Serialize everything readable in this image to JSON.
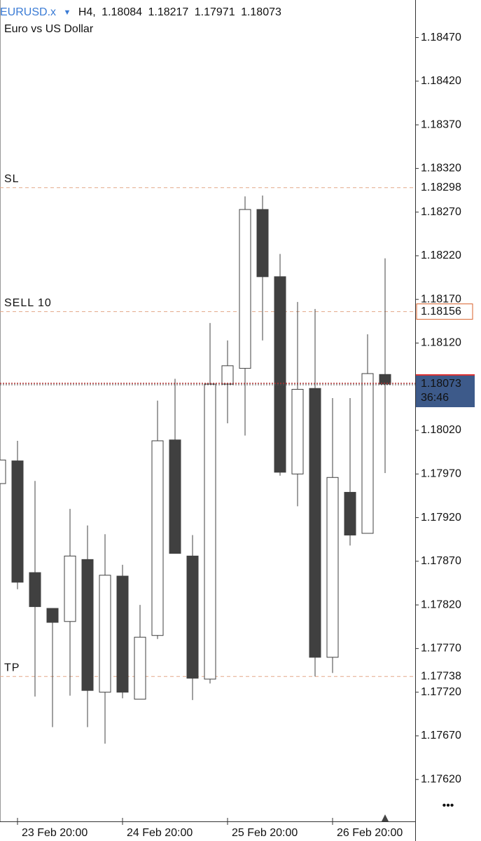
{
  "chart_data": {
    "type": "candlestick",
    "symbol": "EURUSD.x",
    "timeframe": "H4,",
    "subtitle": "Euro vs US Dollar",
    "categories": [
      null,
      "23 Feb 20:00",
      null,
      null,
      null,
      null,
      null,
      "24 Feb 20:00",
      null,
      null,
      null,
      null,
      null,
      "25 Feb 20:00",
      null,
      null,
      null,
      null,
      null,
      "26 Feb 20:00",
      null,
      null,
      null
    ],
    "open": [
      1.17959,
      1.17985,
      1.17857,
      1.17816,
      1.17801,
      1.17872,
      1.1772,
      1.17853,
      1.17712,
      1.17785,
      1.18009,
      1.17876,
      1.17735,
      1.18073,
      1.18091,
      1.18273,
      1.18196,
      1.1797,
      1.18068,
      1.1776,
      1.17949,
      1.17902,
      1.18084
    ],
    "high": [
      1.17986,
      1.18008,
      1.17962,
      1.17816,
      1.1793,
      1.17911,
      1.17901,
      1.17866,
      1.1782,
      1.18054,
      1.18079,
      1.179,
      1.18143,
      1.18123,
      1.18288,
      1.18289,
      1.18222,
      1.18167,
      1.18159,
      1.18057,
      1.18057,
      1.1813,
      1.18217
    ],
    "low": [
      1.17959,
      1.17838,
      1.17715,
      1.1768,
      1.17716,
      1.1768,
      1.17661,
      1.17713,
      1.17712,
      1.17781,
      1.17879,
      1.17711,
      1.1773,
      1.18028,
      1.18014,
      1.18123,
      1.17968,
      1.17933,
      1.17738,
      1.17742,
      1.17888,
      1.17902,
      1.17971
    ],
    "close": [
      1.17986,
      1.17846,
      1.17818,
      1.178,
      1.17876,
      1.17722,
      1.17854,
      1.1772,
      1.17783,
      1.18008,
      1.17879,
      1.17736,
      1.18073,
      1.18094,
      1.18273,
      1.18196,
      1.17972,
      1.18067,
      1.1776,
      1.17966,
      1.179,
      1.18085,
      1.18073
    ],
    "up_color": "#ffffff",
    "down_color": "#404040",
    "ylim": [
      1.17572,
      1.18513
    ],
    "yticks": [
      {
        "value": 1.1847,
        "label": "1.18470"
      },
      {
        "value": 1.1842,
        "label": "1.18420"
      },
      {
        "value": 1.1837,
        "label": "1.18370"
      },
      {
        "value": 1.1832,
        "label": "1.18320"
      },
      {
        "value": 1.1827,
        "label": "1.18270"
      },
      {
        "value": 1.1822,
        "label": "1.18220"
      },
      {
        "value": 1.1817,
        "label": "1.18170"
      },
      {
        "value": 1.1812,
        "label": "1.18120"
      },
      {
        "value": 1.1802,
        "label": "1.18020"
      },
      {
        "value": 1.1797,
        "label": "1.17970"
      },
      {
        "value": 1.1792,
        "label": "1.17920"
      },
      {
        "value": 1.1787,
        "label": "1.17870"
      },
      {
        "value": 1.1782,
        "label": "1.17820"
      },
      {
        "value": 1.1777,
        "label": "1.17770"
      },
      {
        "value": 1.1772,
        "label": "1.17720"
      },
      {
        "value": 1.1767,
        "label": "1.17670"
      },
      {
        "value": 1.1762,
        "label": "1.17620"
      }
    ],
    "levels": [
      {
        "name": "SL",
        "value": 1.18298
      },
      {
        "name": "SELL 10",
        "value": 1.18156,
        "boxed": true
      },
      {
        "name": "TP",
        "value": 1.17738
      }
    ],
    "level_color": "#d9622b",
    "current_price": {
      "value": 1.18073,
      "countdown": "36:46",
      "color": "#3d5a8a"
    }
  }
}
